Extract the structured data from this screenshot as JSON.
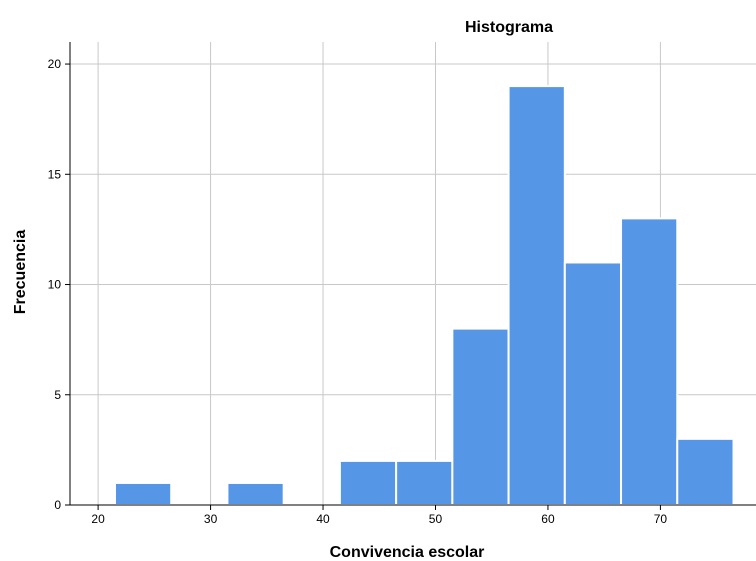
{
  "chart_data": {
    "type": "bar",
    "title": "Histograma",
    "xlabel": "Convivencia escolar",
    "ylabel": "Frecuencia",
    "xlim": [
      17.5,
      78.5
    ],
    "ylim": [
      0,
      21
    ],
    "x_ticks": [
      20,
      30,
      40,
      50,
      60,
      70
    ],
    "y_ticks": [
      0,
      5,
      10,
      15,
      20
    ],
    "bin_width": 5,
    "bins": [
      {
        "start": 21.5,
        "end": 26.5,
        "count": 1
      },
      {
        "start": 26.5,
        "end": 31.5,
        "count": 0
      },
      {
        "start": 31.5,
        "end": 36.5,
        "count": 1
      },
      {
        "start": 36.5,
        "end": 41.5,
        "count": 0
      },
      {
        "start": 41.5,
        "end": 46.5,
        "count": 2
      },
      {
        "start": 46.5,
        "end": 51.5,
        "count": 2
      },
      {
        "start": 51.5,
        "end": 56.5,
        "count": 8
      },
      {
        "start": 56.5,
        "end": 61.5,
        "count": 19
      },
      {
        "start": 61.5,
        "end": 66.5,
        "count": 11
      },
      {
        "start": 66.5,
        "end": 71.5,
        "count": 13
      },
      {
        "start": 71.5,
        "end": 76.5,
        "count": 3
      }
    ],
    "grid": true,
    "colors": {
      "bar_fill": "#5596e6",
      "bar_stroke": "#ffffff",
      "grid": "#c8c8c8",
      "axis": "#000000"
    }
  }
}
